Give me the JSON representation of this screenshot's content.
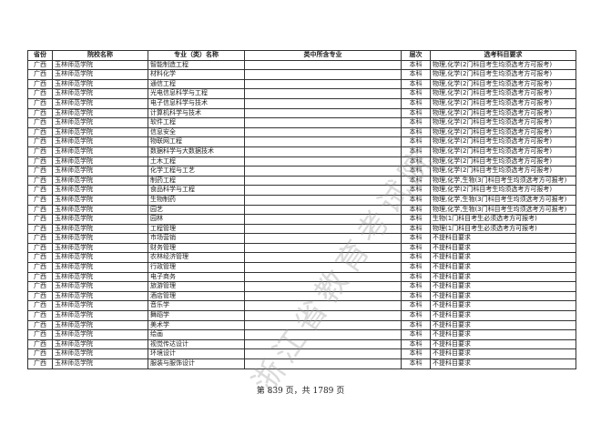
{
  "headers": [
    "省份",
    "院校名称",
    "专业（类）名称",
    "类中所含专业",
    "层次",
    "选考科目要求"
  ],
  "rows": [
    [
      "广西",
      "玉林师范学院",
      "智能制造工程",
      "",
      "本科",
      "物理,化学(2门科目考生均须选考方可报考)"
    ],
    [
      "广西",
      "玉林师范学院",
      "材料化学",
      "",
      "本科",
      "物理,化学(2门科目考生均须选考方可报考)"
    ],
    [
      "广西",
      "玉林师范学院",
      "通信工程",
      "",
      "本科",
      "物理,化学(2门科目考生均须选考方可报考)"
    ],
    [
      "广西",
      "玉林师范学院",
      "光电信息科学与工程",
      "",
      "本科",
      "物理,化学(2门科目考生均须选考方可报考)"
    ],
    [
      "广西",
      "玉林师范学院",
      "电子信息科学与技术",
      "",
      "本科",
      "物理,化学(2门科目考生均须选考方可报考)"
    ],
    [
      "广西",
      "玉林师范学院",
      "计算机科学与技术",
      "",
      "本科",
      "物理,化学(2门科目考生均须选考方可报考)"
    ],
    [
      "广西",
      "玉林师范学院",
      "软件工程",
      "",
      "本科",
      "物理,化学(2门科目考生均须选考方可报考)"
    ],
    [
      "广西",
      "玉林师范学院",
      "信息安全",
      "",
      "本科",
      "物理,化学(2门科目考生均须选考方可报考)"
    ],
    [
      "广西",
      "玉林师范学院",
      "物联网工程",
      "",
      "本科",
      "物理,化学(2门科目考生均须选考方可报考)"
    ],
    [
      "广西",
      "玉林师范学院",
      "数据科学与大数据技术",
      "",
      "本科",
      "物理,化学(2门科目考生均须选考方可报考)"
    ],
    [
      "广西",
      "玉林师范学院",
      "土木工程",
      "",
      "本科",
      "物理,化学(2门科目考生均须选考方可报考)"
    ],
    [
      "广西",
      "玉林师范学院",
      "化学工程与工艺",
      "",
      "本科",
      "物理,化学(2门科目考生均须选考方可报考)"
    ],
    [
      "广西",
      "玉林师范学院",
      "制药工程",
      "",
      "本科",
      "物理,化学,生物(3门科目考生均须选考方可报考)"
    ],
    [
      "广西",
      "玉林师范学院",
      "食品科学与工程",
      "",
      "本科",
      "物理,化学(2门科目考生均须选考方可报考)"
    ],
    [
      "广西",
      "玉林师范学院",
      "生物制药",
      "",
      "本科",
      "物理,化学,生物(3门科目考生均须选考方可报考)"
    ],
    [
      "广西",
      "玉林师范学院",
      "园艺",
      "",
      "本科",
      "物理,化学,生物(3门科目考生均须选考方可报考)"
    ],
    [
      "广西",
      "玉林师范学院",
      "园林",
      "",
      "本科",
      "生物(1门科目考生必须选考方可报考)"
    ],
    [
      "广西",
      "玉林师范学院",
      "工程管理",
      "",
      "本科",
      "物理(1门科目考生必须选考方可报考)"
    ],
    [
      "广西",
      "玉林师范学院",
      "市场营销",
      "",
      "本科",
      "不提科目要求"
    ],
    [
      "广西",
      "玉林师范学院",
      "财务管理",
      "",
      "本科",
      "不提科目要求"
    ],
    [
      "广西",
      "玉林师范学院",
      "农林经济管理",
      "",
      "本科",
      "不提科目要求"
    ],
    [
      "广西",
      "玉林师范学院",
      "行政管理",
      "",
      "本科",
      "不提科目要求"
    ],
    [
      "广西",
      "玉林师范学院",
      "电子商务",
      "",
      "本科",
      "不提科目要求"
    ],
    [
      "广西",
      "玉林师范学院",
      "旅游管理",
      "",
      "本科",
      "不提科目要求"
    ],
    [
      "广西",
      "玉林师范学院",
      "酒店管理",
      "",
      "本科",
      "不提科目要求"
    ],
    [
      "广西",
      "玉林师范学院",
      "音乐学",
      "",
      "本科",
      "不提科目要求"
    ],
    [
      "广西",
      "玉林师范学院",
      "舞蹈学",
      "",
      "本科",
      "不提科目要求"
    ],
    [
      "广西",
      "玉林师范学院",
      "美术学",
      "",
      "本科",
      "不提科目要求"
    ],
    [
      "广西",
      "玉林师范学院",
      "绘画",
      "",
      "本科",
      "不提科目要求"
    ],
    [
      "广西",
      "玉林师范学院",
      "视觉传达设计",
      "",
      "本科",
      "不提科目要求"
    ],
    [
      "广西",
      "玉林师范学院",
      "环境设计",
      "",
      "本科",
      "不提科目要求"
    ],
    [
      "广西",
      "玉林师范学院",
      "服装与服饰设计",
      "",
      "本科",
      "不提科目要求"
    ]
  ],
  "watermark": "浙江省教育考试院",
  "footer": "第 839 页，共 1789 页"
}
